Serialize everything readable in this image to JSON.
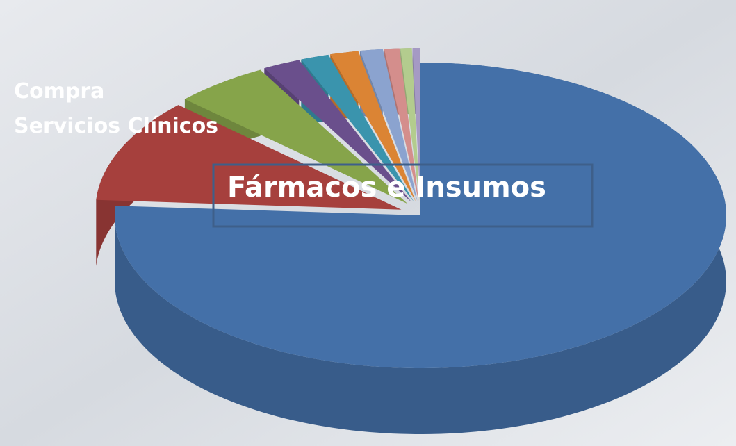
{
  "chart_data": {
    "type": "pie",
    "categories": [
      "Fármacos e Insumos",
      "Compra Servicios Clínicos",
      null,
      null,
      null,
      null,
      null,
      null,
      null,
      null
    ],
    "values": [
      76,
      11,
      5,
      2,
      1.5,
      1.5,
      1.2,
      0.8,
      0.6,
      0.4
    ],
    "colors": [
      "#4470a8",
      "#a6403d",
      "#86a44a",
      "#6a4f8c",
      "#3a94ad",
      "#db8434",
      "#8ba3cf",
      "#d48e8c",
      "#b3cc8e",
      "#a59ac4"
    ]
  }
}
